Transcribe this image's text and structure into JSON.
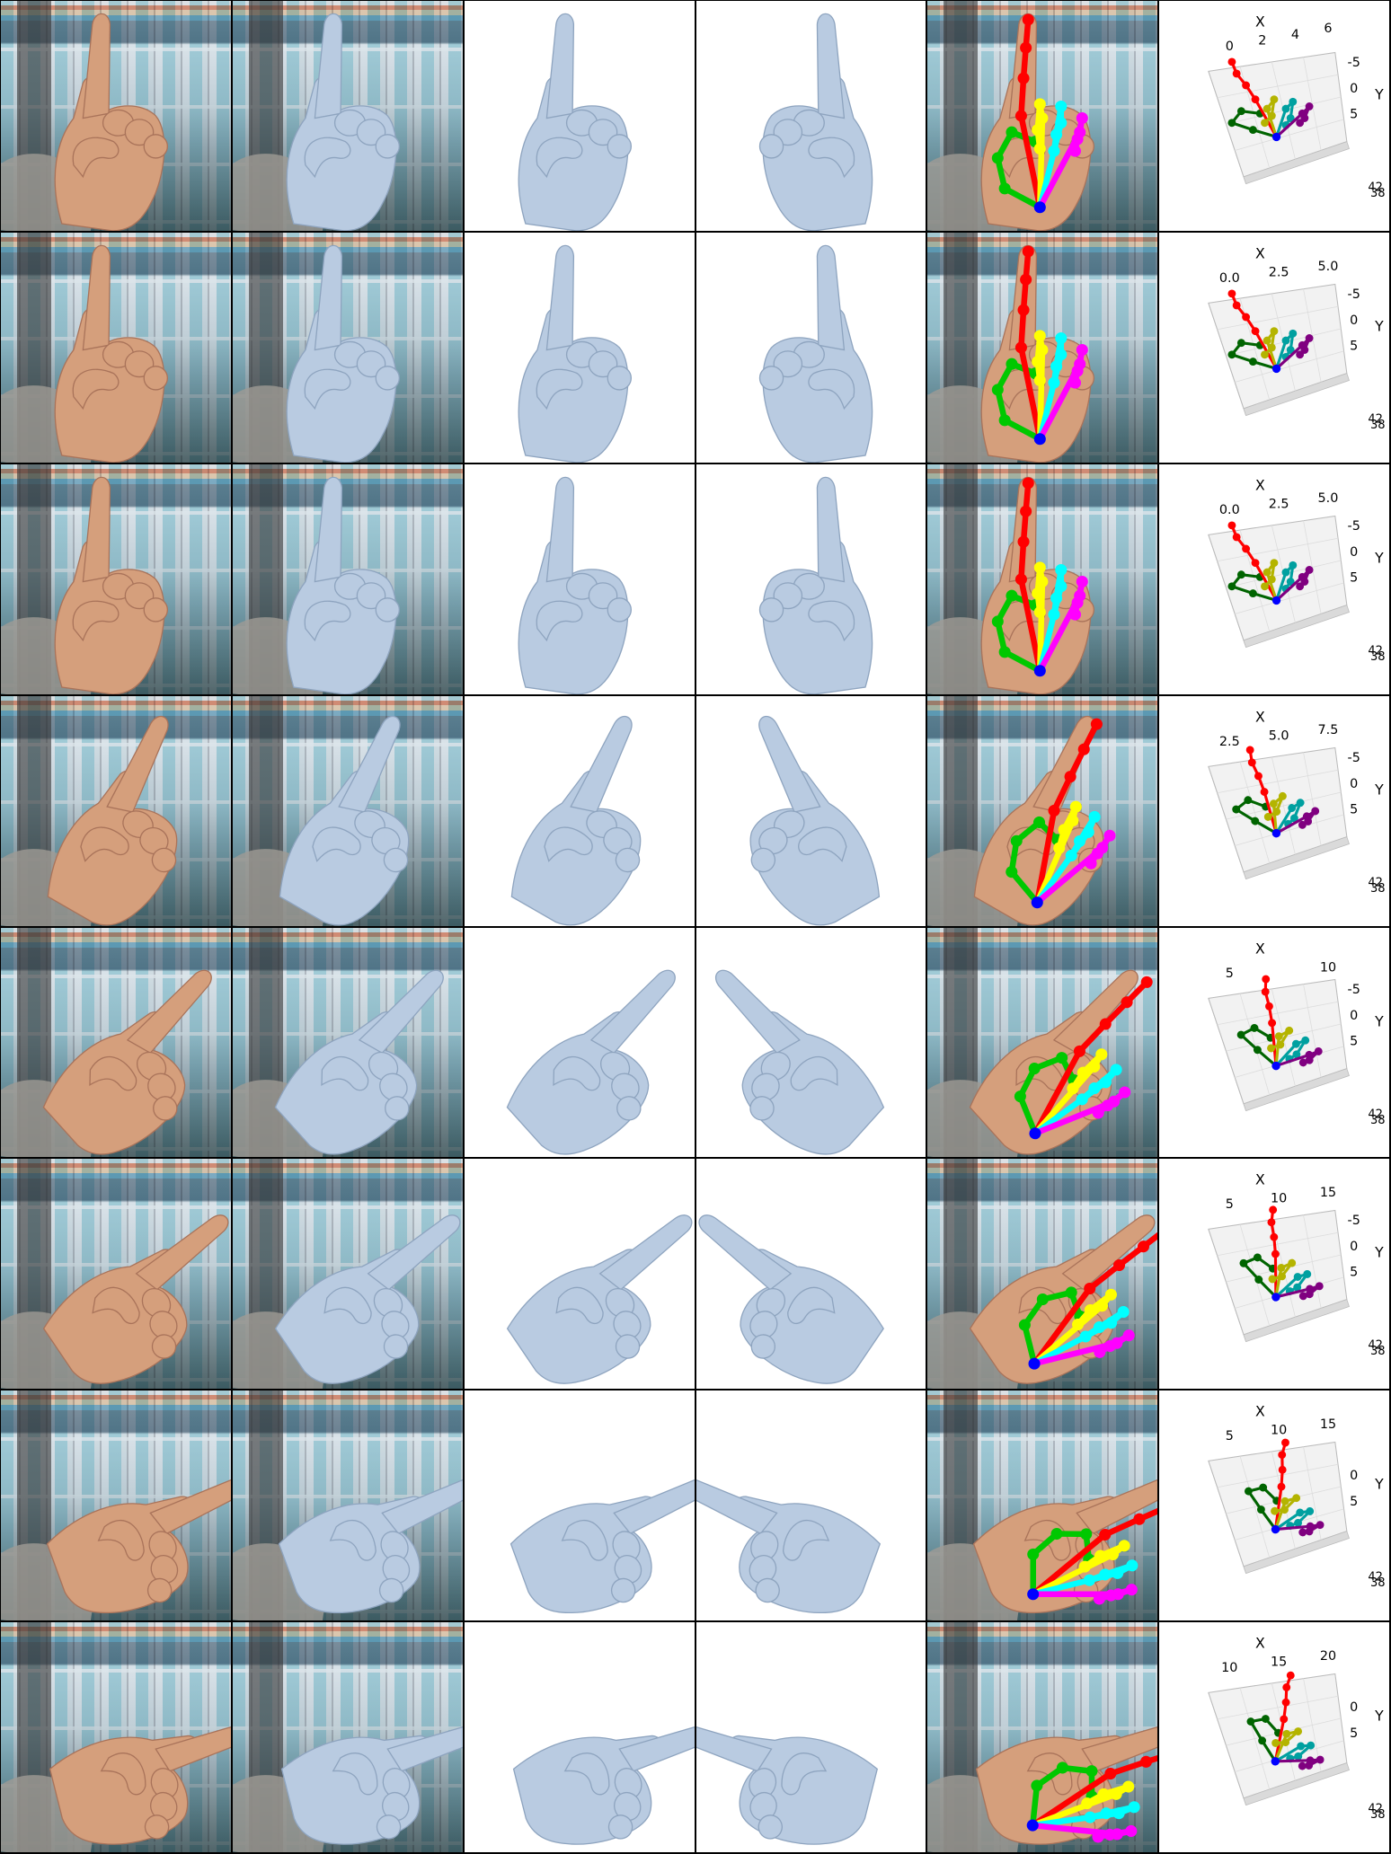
{
  "colors": {
    "thumb": "#00c800",
    "thumb_dark": "#006400",
    "index": "#ff0000",
    "index_light": "#ff6262",
    "middle": "#ffff00",
    "middle_dark": "#b4b400",
    "ring": "#00ffff",
    "ring_dark": "#00a0a0",
    "pinky": "#ff00ff",
    "pinky_dark": "#800080",
    "wrist": "#0000ff",
    "skin": "#d59f7c",
    "mesh": "#b9cbe1",
    "mesh_shadow": "#8ea4bf"
  },
  "rows": [
    {
      "plot": {
        "x_label": "X",
        "y_label": "Y",
        "x_ticks": [
          "0",
          "2",
          "4",
          "6"
        ],
        "y_ticks": [
          "-5",
          "0",
          "5"
        ],
        "z_ticks": [
          "42",
          "38"
        ]
      }
    },
    {
      "plot": {
        "x_label": "X",
        "y_label": "Y",
        "x_ticks": [
          "0.0",
          "2.5",
          "5.0"
        ],
        "y_ticks": [
          "-5",
          "0",
          "5"
        ],
        "z_ticks": [
          "42",
          "38"
        ]
      }
    },
    {
      "plot": {
        "x_label": "X",
        "y_label": "Y",
        "x_ticks": [
          "0.0",
          "2.5",
          "5.0"
        ],
        "y_ticks": [
          "-5",
          "0",
          "5"
        ],
        "z_ticks": [
          "42",
          "38"
        ]
      }
    },
    {
      "plot": {
        "x_label": "X",
        "y_label": "Y",
        "x_ticks": [
          "2.5",
          "5.0",
          "7.5"
        ],
        "y_ticks": [
          "-5",
          "0",
          "5"
        ],
        "z_ticks": [
          "42",
          "38"
        ]
      }
    },
    {
      "plot": {
        "x_label": "X",
        "y_label": "Y",
        "x_ticks": [
          "5",
          "10"
        ],
        "y_ticks": [
          "-5",
          "0",
          "5"
        ],
        "z_ticks": [
          "42",
          "38"
        ]
      }
    },
    {
      "plot": {
        "x_label": "X",
        "y_label": "Y",
        "x_ticks": [
          "5",
          "10",
          "15"
        ],
        "y_ticks": [
          "-5",
          "0",
          "5"
        ],
        "z_ticks": [
          "42",
          "38"
        ]
      }
    },
    {
      "plot": {
        "x_label": "X",
        "y_label": "Y",
        "x_ticks": [
          "5",
          "10",
          "15"
        ],
        "y_ticks": [
          "0",
          "5"
        ],
        "z_ticks": [
          "42",
          "38"
        ]
      }
    },
    {
      "plot": {
        "x_label": "X",
        "y_label": "Y",
        "x_ticks": [
          "10",
          "15",
          "20"
        ],
        "y_ticks": [
          "0",
          "5"
        ],
        "z_ticks": [
          "42",
          "38"
        ]
      }
    }
  ]
}
